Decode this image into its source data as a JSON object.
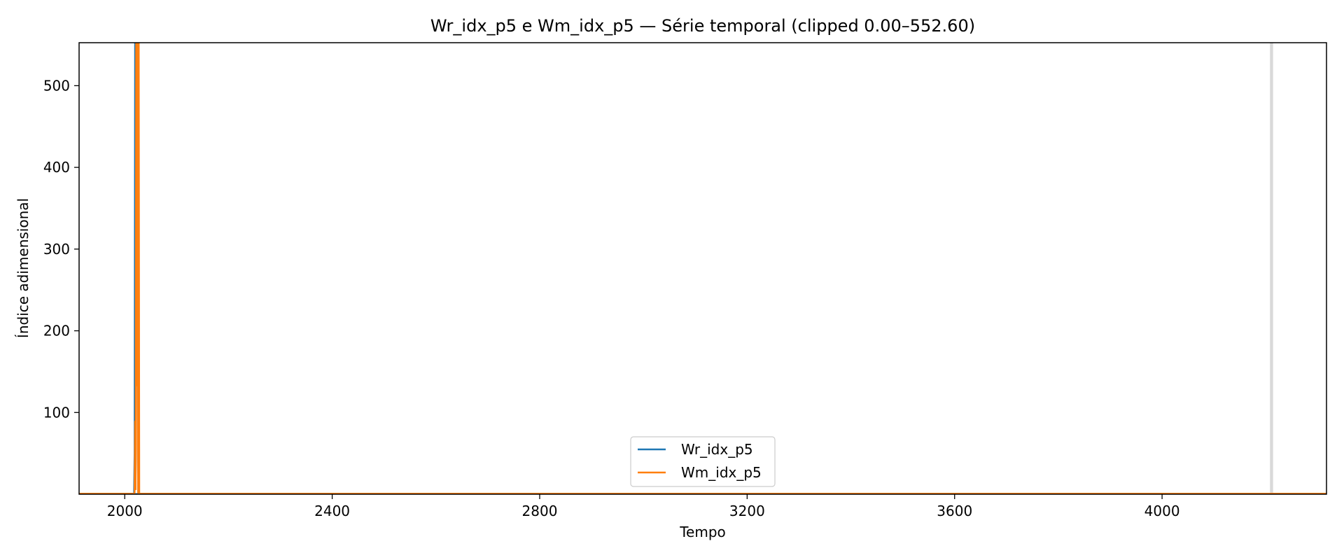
{
  "chart_data": {
    "type": "line",
    "title": "Wr_idx_p5 e Wm_idx_p5 — Série temporal (clipped 0.00–552.60)",
    "xlabel": "Tempo",
    "ylabel": "Índice adimensional",
    "xlim": [
      1912,
      4317
    ],
    "ylim": [
      0,
      552.6
    ],
    "x_ticks": [
      2000,
      2400,
      2800,
      3200,
      3600,
      4000
    ],
    "y_ticks": [
      100,
      200,
      300,
      400,
      500
    ],
    "grid": false,
    "legend_position": "lower center",
    "baseline": {
      "y": 0.6,
      "style": "dashed",
      "color": "#1f77b4"
    },
    "highlight_band": {
      "x_start": 4208,
      "x_end": 4214,
      "color": "#d9d9d9"
    },
    "series": [
      {
        "name": "Wr_idx_p5",
        "color": "#1f77b4",
        "x": [
          1912,
          2018,
          2019,
          2020,
          2021,
          2022,
          2023,
          2024,
          2025,
          2026,
          2027,
          2028,
          4317
        ],
        "y": [
          0.6,
          0.6,
          50,
          552.6,
          135,
          552.6,
          300,
          552.6,
          80,
          0.6,
          0.6,
          0.6,
          0.6
        ]
      },
      {
        "name": "Wm_idx_p5",
        "color": "#ff7f0e",
        "x": [
          1912,
          2019,
          2020,
          2021,
          2022,
          2023,
          2024,
          2025,
          2026,
          2027,
          2028,
          2029,
          4317
        ],
        "y": [
          0.6,
          0.6,
          90,
          5,
          552.6,
          132,
          552.6,
          60,
          0.6,
          552.6,
          0.6,
          0.6,
          0.6
        ]
      }
    ]
  }
}
